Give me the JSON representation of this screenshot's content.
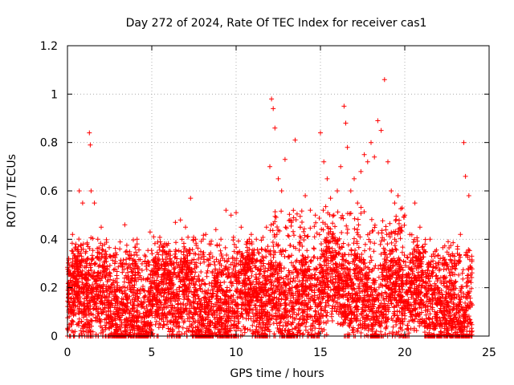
{
  "chart_data": {
    "type": "scatter",
    "title": "Day 272 of 2024, Rate Of TEC Index for receiver cas1",
    "xlabel": "GPS time / hours",
    "ylabel": "ROTI / TECUs",
    "xlim": [
      0,
      25
    ],
    "ylim": [
      0,
      1.2
    ],
    "x_ticks": [
      0,
      5,
      10,
      15,
      20,
      25
    ],
    "x_tick_labels": [
      "0",
      "5",
      "10",
      "15",
      "20",
      "25"
    ],
    "y_ticks": [
      0,
      0.2,
      0.4,
      0.6,
      0.8,
      1,
      1.2
    ],
    "y_tick_labels": [
      "0",
      "0.2",
      "0.4",
      "0.6",
      "0.8",
      "1",
      "1.2"
    ],
    "grid": true,
    "marker": "+",
    "series": [
      {
        "name": "ROTI",
        "color": "#ff0000",
        "x": [
          0.1,
          0.3,
          0.5,
          0.7,
          0.9,
          1.1,
          1.3,
          1.35,
          1.4,
          1.6,
          1.8,
          2.0,
          2.2,
          2.5,
          2.8,
          3.1,
          3.4,
          3.7,
          4.0,
          4.3,
          4.6,
          4.9,
          5.2,
          5.5,
          5.8,
          6.1,
          6.4,
          6.7,
          7.0,
          7.3,
          7.6,
          7.9,
          8.2,
          8.5,
          8.8,
          9.1,
          9.4,
          9.7,
          10.0,
          10.3,
          10.6,
          10.9,
          11.2,
          11.5,
          11.8,
          12.0,
          12.1,
          12.2,
          12.3,
          12.5,
          12.7,
          12.9,
          13.2,
          13.5,
          13.8,
          14.1,
          14.4,
          14.7,
          15.0,
          15.2,
          15.4,
          15.6,
          15.8,
          16.0,
          16.2,
          16.4,
          16.5,
          16.6,
          16.8,
          17.0,
          17.2,
          17.4,
          17.6,
          17.8,
          18.0,
          18.2,
          18.4,
          18.6,
          18.8,
          19.0,
          19.2,
          19.4,
          19.6,
          19.8,
          20.0,
          20.3,
          20.6,
          20.9,
          21.2,
          21.5,
          21.8,
          22.1,
          22.4,
          22.7,
          23.0,
          23.3,
          23.5,
          23.6,
          23.8
        ],
        "y": [
          0.27,
          0.42,
          0.38,
          0.6,
          0.55,
          0.35,
          0.84,
          0.79,
          0.6,
          0.55,
          0.4,
          0.45,
          0.38,
          0.33,
          0.3,
          0.36,
          0.46,
          0.32,
          0.28,
          0.25,
          0.31,
          0.43,
          0.26,
          0.39,
          0.3,
          0.35,
          0.47,
          0.48,
          0.45,
          0.57,
          0.4,
          0.35,
          0.42,
          0.38,
          0.44,
          0.4,
          0.52,
          0.5,
          0.51,
          0.45,
          0.38,
          0.42,
          0.4,
          0.36,
          0.45,
          0.7,
          0.98,
          0.94,
          0.86,
          0.65,
          0.6,
          0.73,
          0.48,
          0.81,
          0.45,
          0.58,
          0.52,
          0.5,
          0.84,
          0.72,
          0.65,
          0.57,
          0.5,
          0.6,
          0.7,
          0.95,
          0.88,
          0.78,
          0.6,
          0.65,
          0.55,
          0.68,
          0.75,
          0.72,
          0.8,
          0.74,
          0.89,
          0.85,
          1.06,
          0.72,
          0.6,
          0.55,
          0.58,
          0.45,
          0.5,
          0.42,
          0.55,
          0.45,
          0.38,
          0.4,
          0.35,
          0.32,
          0.3,
          0.33,
          0.3,
          0.42,
          0.8,
          0.66,
          0.58
        ],
        "baseline_note": "dense cloud of points between 0 and ~0.35 TECUs across all hours"
      }
    ]
  }
}
